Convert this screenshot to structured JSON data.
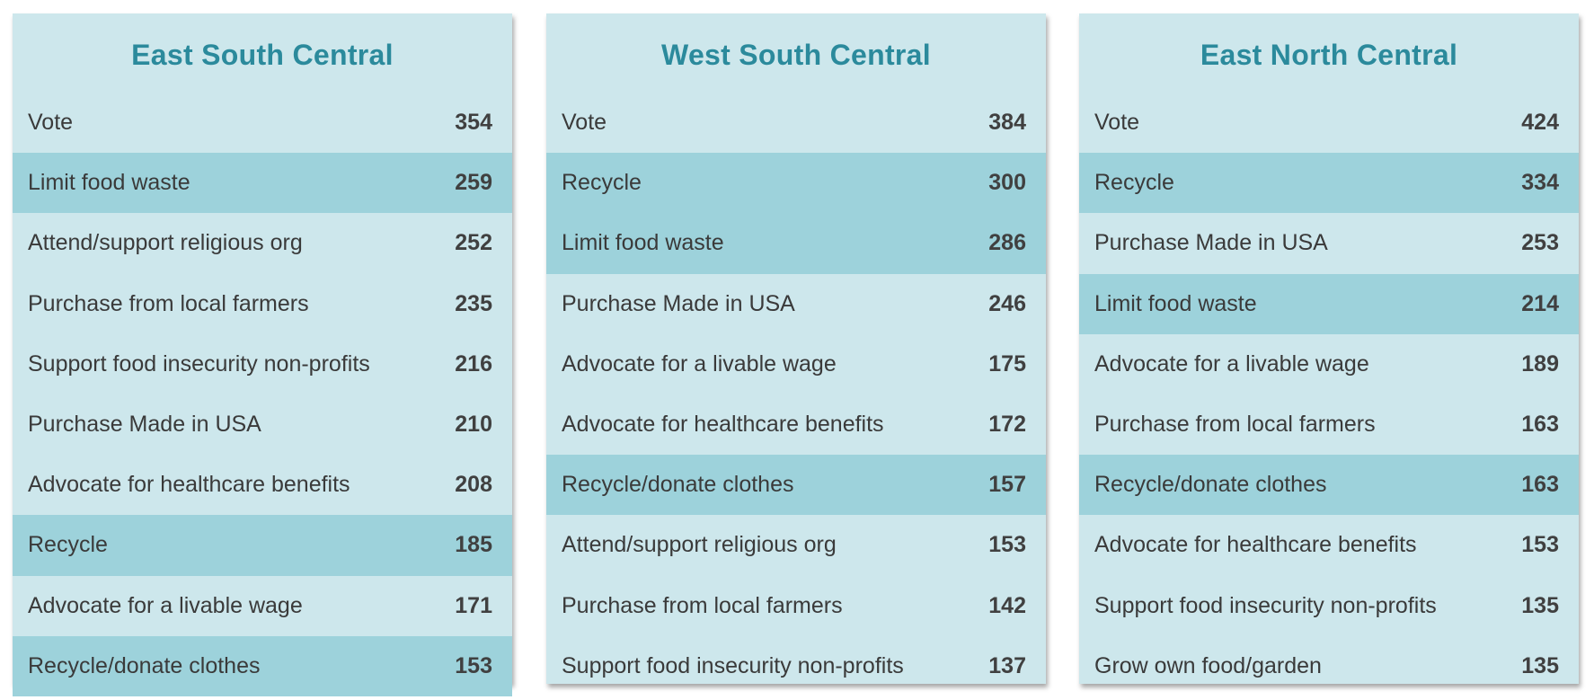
{
  "chart_data": {
    "type": "table",
    "highlight_color": "#9dd2db",
    "panel_color": "#cde7ec",
    "title_color": "#2b8a9c",
    "panels": [
      {
        "title": "East South Central",
        "rows": [
          {
            "label": "Vote",
            "value": 354,
            "highlight": false
          },
          {
            "label": "Limit food waste",
            "value": 259,
            "highlight": true
          },
          {
            "label": "Attend/support religious org",
            "value": 252,
            "highlight": false
          },
          {
            "label": "Purchase from local farmers",
            "value": 235,
            "highlight": false
          },
          {
            "label": "Support food insecurity non-profits",
            "value": 216,
            "highlight": false
          },
          {
            "label": "Purchase Made in USA",
            "value": 210,
            "highlight": false
          },
          {
            "label": "Advocate for healthcare benefits",
            "value": 208,
            "highlight": false
          },
          {
            "label": "Recycle",
            "value": 185,
            "highlight": true
          },
          {
            "label": "Advocate for a livable wage",
            "value": 171,
            "highlight": false
          },
          {
            "label": "Recycle/donate clothes",
            "value": 153,
            "highlight": true
          }
        ]
      },
      {
        "title": "West South Central",
        "rows": [
          {
            "label": "Vote",
            "value": 384,
            "highlight": false
          },
          {
            "label": "Recycle",
            "value": 300,
            "highlight": true
          },
          {
            "label": "Limit food waste",
            "value": 286,
            "highlight": true
          },
          {
            "label": "Purchase Made in USA",
            "value": 246,
            "highlight": false
          },
          {
            "label": "Advocate for a livable wage",
            "value": 175,
            "highlight": false
          },
          {
            "label": "Advocate for healthcare benefits",
            "value": 172,
            "highlight": false
          },
          {
            "label": "Recycle/donate clothes",
            "value": 157,
            "highlight": true
          },
          {
            "label": "Attend/support religious org",
            "value": 153,
            "highlight": false
          },
          {
            "label": "Purchase from local farmers",
            "value": 142,
            "highlight": false
          },
          {
            "label": "Support food insecurity non-profits",
            "value": 137,
            "highlight": false
          }
        ]
      },
      {
        "title": "East North Central",
        "rows": [
          {
            "label": "Vote",
            "value": 424,
            "highlight": false
          },
          {
            "label": "Recycle",
            "value": 334,
            "highlight": true
          },
          {
            "label": "Purchase Made in USA",
            "value": 253,
            "highlight": false
          },
          {
            "label": "Limit food waste",
            "value": 214,
            "highlight": true
          },
          {
            "label": "Advocate for a livable wage",
            "value": 189,
            "highlight": false
          },
          {
            "label": "Purchase from local farmers",
            "value": 163,
            "highlight": false
          },
          {
            "label": "Recycle/donate clothes",
            "value": 163,
            "highlight": true
          },
          {
            "label": "Advocate for healthcare benefits",
            "value": 153,
            "highlight": false
          },
          {
            "label": "Support food insecurity non-profits",
            "value": 135,
            "highlight": false
          },
          {
            "label": "Grow own food/garden",
            "value": 135,
            "highlight": false
          }
        ]
      }
    ]
  }
}
